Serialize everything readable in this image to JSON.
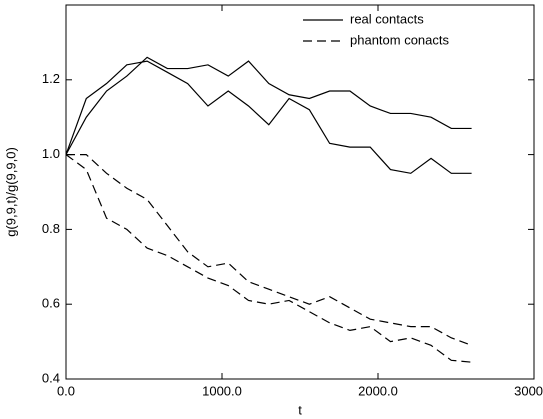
{
  "chart_data": {
    "type": "line",
    "x_label": "t",
    "y_label": "g(9,9,t)/g(9,9,0)",
    "x": [
      0,
      130,
      260,
      390,
      520,
      650,
      780,
      910,
      1040,
      1170,
      1300,
      1430,
      1560,
      1690,
      1820,
      1950,
      2080,
      2210,
      2340,
      2470,
      2600
    ],
    "series": [
      {
        "name": "real contacts",
        "color": "#000000",
        "dashed": false,
        "values": [
          1.0,
          1.1,
          1.17,
          1.21,
          1.26,
          1.23,
          1.23,
          1.24,
          1.21,
          1.25,
          1.19,
          1.16,
          1.15,
          1.17,
          1.17,
          1.13,
          1.11,
          1.11,
          1.1,
          1.07,
          1.07
        ]
      },
      {
        "color": "#000000",
        "dashed": false,
        "values": [
          1.0,
          1.15,
          1.19,
          1.24,
          1.25,
          1.22,
          1.19,
          1.13,
          1.17,
          1.13,
          1.08,
          1.15,
          1.12,
          1.03,
          1.02,
          1.02,
          0.96,
          0.95,
          0.99,
          0.95,
          0.95
        ]
      },
      {
        "name": "phantom conacts",
        "color": "#000000",
        "dashed": true,
        "values": [
          1.0,
          1.0,
          0.95,
          0.91,
          0.88,
          0.81,
          0.74,
          0.7,
          0.71,
          0.66,
          0.64,
          0.62,
          0.6,
          0.62,
          0.59,
          0.56,
          0.55,
          0.54,
          0.54,
          0.51,
          0.49
        ]
      },
      {
        "color": "#000000",
        "dashed": true,
        "values": [
          1.0,
          0.96,
          0.83,
          0.8,
          0.75,
          0.73,
          0.7,
          0.67,
          0.65,
          0.61,
          0.6,
          0.61,
          0.58,
          0.55,
          0.53,
          0.54,
          0.5,
          0.51,
          0.49,
          0.45,
          0.445
        ]
      }
    ],
    "xlim": [
      0,
      3000
    ],
    "xticks": [
      {
        "value": 0,
        "label": "0.0"
      },
      {
        "value": 1000,
        "label": "1000.0"
      },
      {
        "value": 2000,
        "label": "2000.0"
      },
      {
        "value": 3000,
        "label": "3000.0"
      }
    ],
    "ylim": [
      0.4,
      1.4
    ],
    "yticks": [
      0.4,
      0.6,
      0.8,
      {
        "value": 1,
        "label": "1.0"
      },
      1.2
    ],
    "legend": "top-right",
    "grid": false
  }
}
